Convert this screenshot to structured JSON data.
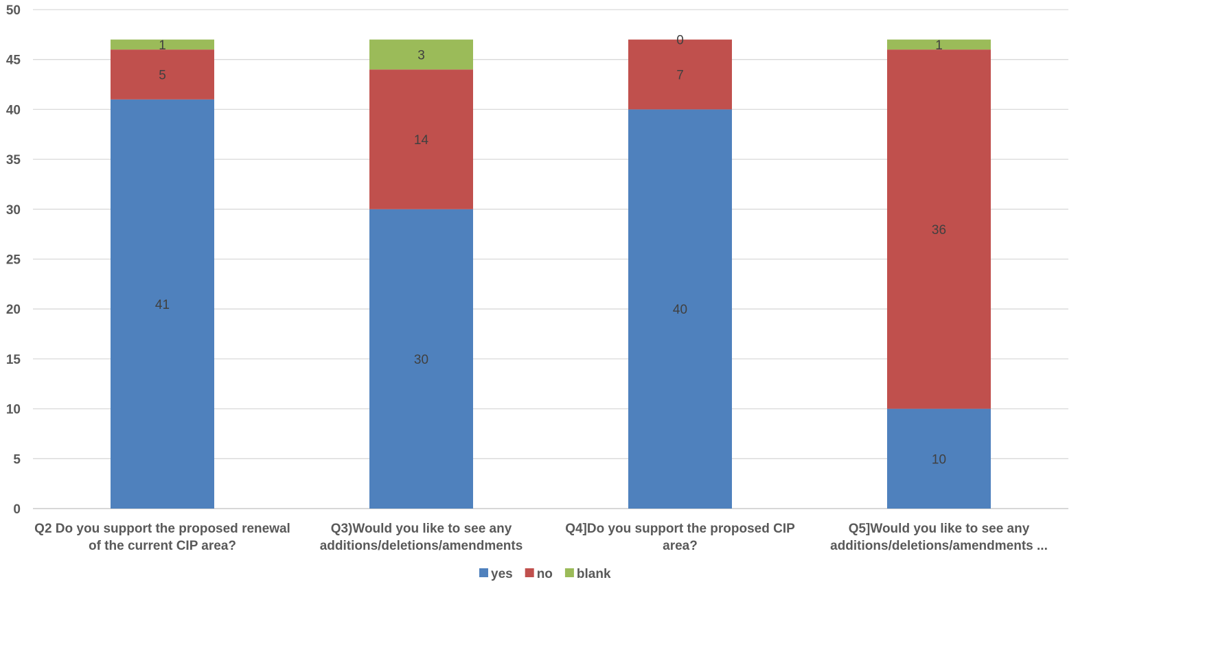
{
  "chart_data": {
    "type": "bar",
    "stacked": true,
    "categories": [
      [
        "Q2 Do you support the proposed renewal",
        "of the current CIP area?"
      ],
      [
        "Q3)Would you like to see any",
        "additions/deletions/amendments"
      ],
      [
        "Q4]Do you support the proposed CIP",
        "area?"
      ],
      [
        "Q5]Would you like to see any",
        "additions/deletions/amendments ..."
      ]
    ],
    "series": [
      {
        "name": "yes",
        "values": [
          41,
          30,
          40,
          10
        ],
        "color": "#4F81BD"
      },
      {
        "name": "no",
        "values": [
          5,
          14,
          7,
          36
        ],
        "color": "#C0504D"
      },
      {
        "name": "blank",
        "values": [
          1,
          3,
          0,
          1
        ],
        "color": "#9BBB59"
      }
    ],
    "ylim": [
      0,
      50
    ],
    "yticks": [
      "0",
      "5",
      "10",
      "15",
      "20",
      "25",
      "30",
      "35",
      "40",
      "45",
      "50"
    ],
    "grid": true,
    "legend_position": "bottom",
    "title": "",
    "xlabel": "",
    "ylabel": ""
  }
}
